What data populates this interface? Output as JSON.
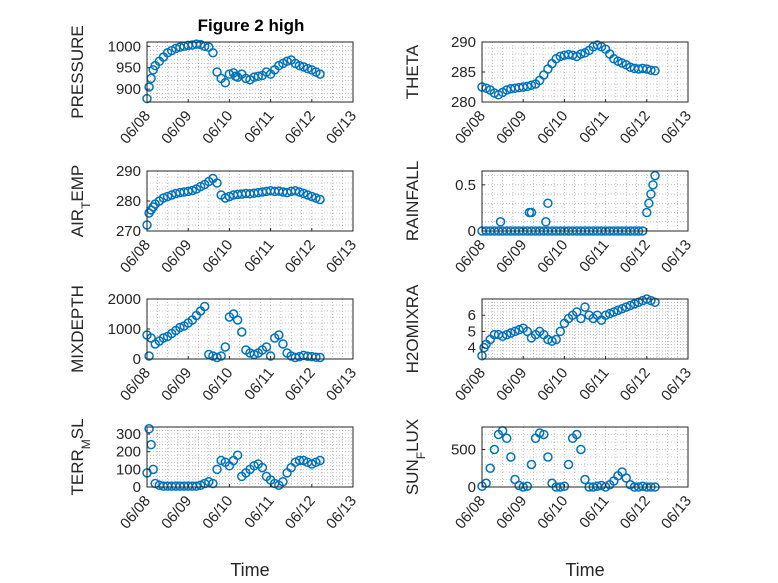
{
  "figure": {
    "title": "Figure 2 high"
  },
  "colors": {
    "marker": "#0072BD",
    "axis": "#262626",
    "grid": "#9a9a9a"
  },
  "chart_data": [
    {
      "type": "scatter",
      "ylabel": "PRESSURE",
      "yticks": [
        900,
        950,
        1000
      ],
      "ylim": [
        870,
        1010
      ],
      "xticks": [
        "06/08",
        "06/09",
        "06/10",
        "06/11",
        "06/12",
        "06/13"
      ],
      "xlim": [
        0,
        5
      ],
      "xlabel": "",
      "grid": true,
      "x": [
        0.0,
        0.05,
        0.1,
        0.15,
        0.2,
        0.3,
        0.4,
        0.5,
        0.6,
        0.7,
        0.8,
        0.9,
        1.0,
        1.1,
        1.2,
        1.3,
        1.4,
        1.5,
        1.6,
        1.7,
        1.8,
        1.9,
        2.0,
        2.1,
        2.15,
        2.2,
        2.3,
        2.4,
        2.5,
        2.6,
        2.7,
        2.8,
        2.9,
        3.0,
        3.1,
        3.2,
        3.3,
        3.4,
        3.5,
        3.6,
        3.7,
        3.8,
        3.9,
        4.0,
        4.1,
        4.2
      ],
      "y": [
        878,
        905,
        925,
        945,
        955,
        965,
        975,
        985,
        990,
        995,
        998,
        1000,
        1002,
        1003,
        1005,
        1004,
        1000,
        998,
        985,
        940,
        925,
        915,
        935,
        938,
        930,
        928,
        935,
        925,
        922,
        928,
        930,
        932,
        940,
        935,
        945,
        955,
        960,
        965,
        968,
        960,
        955,
        952,
        948,
        945,
        940,
        935
      ]
    },
    {
      "type": "scatter",
      "ylabel": "THETA",
      "yticks": [
        280,
        285,
        290
      ],
      "ylim": [
        280,
        290
      ],
      "xticks": [
        "06/08",
        "06/09",
        "06/10",
        "06/11",
        "06/12",
        "06/13"
      ],
      "xlim": [
        0,
        5
      ],
      "xlabel": "",
      "grid": true,
      "x": [
        0.0,
        0.1,
        0.2,
        0.3,
        0.4,
        0.5,
        0.6,
        0.7,
        0.8,
        0.9,
        1.0,
        1.1,
        1.2,
        1.3,
        1.4,
        1.5,
        1.6,
        1.7,
        1.8,
        1.9,
        2.0,
        2.1,
        2.2,
        2.3,
        2.4,
        2.5,
        2.6,
        2.7,
        2.8,
        2.9,
        3.0,
        3.1,
        3.2,
        3.3,
        3.4,
        3.5,
        3.6,
        3.7,
        3.8,
        3.9,
        4.0,
        4.1,
        4.2
      ],
      "y": [
        282.5,
        282.3,
        282,
        281.5,
        281.2,
        281.6,
        282,
        282.2,
        282.3,
        282.4,
        282.5,
        282.6,
        282.8,
        283,
        283.6,
        284.5,
        285.5,
        286.4,
        287.2,
        287.6,
        287.8,
        287.9,
        287.8,
        287.6,
        288,
        288.2,
        288.6,
        289.2,
        289.5,
        289.2,
        288.8,
        288,
        287.2,
        286.8,
        286.5,
        286.2,
        285.8,
        285.6,
        285.5,
        285.6,
        285.5,
        285.3,
        285.2
      ]
    },
    {
      "type": "scatter",
      "ylabel": "AIR_TEMP",
      "yticks": [
        270,
        280,
        290
      ],
      "ylim": [
        270,
        290
      ],
      "xticks": [
        "06/08",
        "06/09",
        "06/10",
        "06/11",
        "06/12",
        "06/13"
      ],
      "xlim": [
        0,
        5
      ],
      "xlabel": "",
      "grid": true,
      "x": [
        0.0,
        0.05,
        0.1,
        0.15,
        0.2,
        0.3,
        0.4,
        0.5,
        0.6,
        0.7,
        0.8,
        0.9,
        1.0,
        1.1,
        1.2,
        1.3,
        1.4,
        1.5,
        1.6,
        1.7,
        1.8,
        1.9,
        2.0,
        2.1,
        2.2,
        2.3,
        2.4,
        2.5,
        2.6,
        2.7,
        2.8,
        2.9,
        3.0,
        3.1,
        3.2,
        3.3,
        3.4,
        3.5,
        3.6,
        3.7,
        3.8,
        3.9,
        4.0,
        4.1,
        4.2
      ],
      "y": [
        272,
        276,
        277,
        278,
        279,
        280,
        281,
        281.5,
        282,
        282.5,
        282.8,
        283,
        283.2,
        283.5,
        284,
        284.8,
        285.5,
        286.5,
        287.5,
        286,
        282,
        281,
        281.5,
        282,
        282.2,
        282.3,
        282.5,
        282.4,
        282.6,
        282.8,
        283,
        283.2,
        283.4,
        283.2,
        283.3,
        283,
        282.8,
        283.2,
        283.4,
        283,
        282.5,
        282,
        281.5,
        281,
        280.5
      ]
    },
    {
      "type": "scatter",
      "ylabel": "RAINFALL",
      "yticks": [
        0,
        0.5
      ],
      "ylim": [
        0,
        0.65
      ],
      "xticks": [
        "06/08",
        "06/09",
        "06/10",
        "06/11",
        "06/12",
        "06/13"
      ],
      "xlim": [
        0,
        5
      ],
      "xlabel": "",
      "grid": true,
      "x": [
        0.0,
        0.1,
        0.2,
        0.3,
        0.4,
        0.5,
        0.6,
        0.7,
        0.8,
        0.9,
        1.0,
        1.1,
        1.2,
        1.3,
        1.4,
        1.5,
        1.6,
        1.7,
        1.8,
        1.9,
        2.0,
        2.1,
        2.2,
        2.3,
        2.4,
        2.5,
        2.6,
        2.7,
        2.8,
        2.9,
        3.0,
        3.1,
        3.2,
        3.3,
        3.4,
        3.5,
        3.6,
        3.7,
        3.8,
        3.9,
        4.0,
        4.05,
        4.1,
        4.15,
        4.2,
        0.45,
        1.15,
        1.2,
        1.55,
        1.6
      ],
      "y": [
        0,
        0,
        0,
        0,
        0,
        0,
        0,
        0,
        0,
        0,
        0,
        0,
        0,
        0,
        0,
        0,
        0,
        0,
        0,
        0,
        0,
        0,
        0,
        0,
        0,
        0,
        0,
        0,
        0,
        0,
        0,
        0,
        0,
        0,
        0,
        0,
        0,
        0,
        0,
        0,
        0.2,
        0.3,
        0.4,
        0.5,
        0.6,
        0.1,
        0.2,
        0.2,
        0.1,
        0.3
      ]
    },
    {
      "type": "scatter",
      "ylabel": "MIXDEPTH",
      "yticks": [
        0,
        1000,
        2000
      ],
      "ylim": [
        0,
        2000
      ],
      "xticks": [
        "06/08",
        "06/09",
        "06/10",
        "06/11",
        "06/12",
        "06/13"
      ],
      "xlim": [
        0,
        5
      ],
      "xlabel": "",
      "grid": true,
      "x": [
        0.0,
        0.05,
        0.1,
        0.2,
        0.3,
        0.4,
        0.5,
        0.6,
        0.7,
        0.8,
        0.9,
        1.0,
        1.1,
        1.2,
        1.3,
        1.4,
        1.5,
        1.6,
        1.7,
        1.8,
        1.9,
        2.0,
        2.1,
        2.2,
        2.3,
        2.4,
        2.5,
        2.6,
        2.7,
        2.8,
        2.9,
        3.0,
        3.1,
        3.2,
        3.3,
        3.4,
        3.5,
        3.6,
        3.7,
        3.8,
        3.9,
        4.0,
        4.1,
        4.2
      ],
      "y": [
        800,
        100,
        700,
        500,
        600,
        700,
        750,
        850,
        950,
        1050,
        1100,
        1200,
        1300,
        1450,
        1600,
        1750,
        150,
        100,
        50,
        100,
        400,
        1400,
        1500,
        1300,
        900,
        300,
        200,
        150,
        200,
        300,
        400,
        100,
        700,
        800,
        500,
        200,
        100,
        50,
        80,
        120,
        90,
        80,
        60,
        50
      ]
    },
    {
      "type": "scatter",
      "ylabel": "H2OMIXRA",
      "yticks": [
        4,
        5,
        6
      ],
      "ylim": [
        3.3,
        7
      ],
      "xticks": [
        "06/08",
        "06/09",
        "06/10",
        "06/11",
        "06/12",
        "06/13"
      ],
      "xlim": [
        0,
        5
      ],
      "xlabel": "",
      "grid": true,
      "x": [
        0.0,
        0.05,
        0.1,
        0.2,
        0.3,
        0.4,
        0.5,
        0.6,
        0.7,
        0.8,
        0.9,
        1.0,
        1.1,
        1.2,
        1.3,
        1.4,
        1.5,
        1.6,
        1.7,
        1.8,
        1.9,
        2.0,
        2.1,
        2.2,
        2.3,
        2.4,
        2.5,
        2.6,
        2.7,
        2.8,
        2.9,
        3.0,
        3.1,
        3.2,
        3.3,
        3.4,
        3.5,
        3.6,
        3.7,
        3.8,
        3.9,
        4.0,
        4.1,
        4.2
      ],
      "y": [
        3.5,
        4,
        4.2,
        4.5,
        4.8,
        4.8,
        4.7,
        4.8,
        4.9,
        5,
        5.1,
        5.2,
        5,
        4.6,
        4.8,
        5,
        4.8,
        4.5,
        4.4,
        4.5,
        5,
        5.5,
        5.8,
        6,
        6.2,
        5.8,
        6.5,
        6,
        5.8,
        6,
        5.7,
        6,
        6.1,
        6.2,
        6.3,
        6.4,
        6.5,
        6.6,
        6.7,
        6.8,
        6.9,
        7,
        6.9,
        6.8
      ]
    },
    {
      "type": "scatter",
      "ylabel": "TERR_MSL",
      "yticks": [
        0,
        100,
        200,
        300
      ],
      "ylim": [
        0,
        340
      ],
      "xticks": [
        "06/08",
        "06/09",
        "06/10",
        "06/11",
        "06/12",
        "06/13"
      ],
      "xlim": [
        0,
        5
      ],
      "xlabel": "Time",
      "grid": true,
      "x": [
        0.0,
        0.05,
        0.1,
        0.15,
        0.2,
        0.3,
        0.4,
        0.5,
        0.6,
        0.7,
        0.8,
        0.9,
        1.0,
        1.1,
        1.2,
        1.3,
        1.4,
        1.5,
        1.6,
        1.7,
        1.8,
        1.9,
        2.0,
        2.1,
        2.2,
        2.3,
        2.4,
        2.5,
        2.6,
        2.7,
        2.8,
        2.9,
        3.0,
        3.1,
        3.2,
        3.3,
        3.4,
        3.5,
        3.6,
        3.7,
        3.8,
        3.9,
        4.0,
        4.1,
        4.2
      ],
      "y": [
        80,
        330,
        240,
        100,
        20,
        10,
        5,
        5,
        5,
        5,
        5,
        5,
        5,
        5,
        5,
        10,
        20,
        30,
        20,
        100,
        150,
        140,
        120,
        150,
        180,
        60,
        80,
        100,
        120,
        130,
        110,
        60,
        40,
        20,
        10,
        30,
        80,
        110,
        140,
        150,
        150,
        140,
        130,
        140,
        150
      ]
    },
    {
      "type": "scatter",
      "ylabel": "SUN_FLUX",
      "yticks": [
        0,
        500
      ],
      "ylim": [
        0,
        800
      ],
      "xticks": [
        "06/08",
        "06/09",
        "06/10",
        "06/11",
        "06/12",
        "06/13"
      ],
      "xlim": [
        0,
        5
      ],
      "xlabel": "Time",
      "grid": true,
      "x": [
        0.0,
        0.1,
        0.2,
        0.3,
        0.4,
        0.5,
        0.6,
        0.7,
        0.8,
        0.9,
        1.0,
        1.1,
        1.2,
        1.3,
        1.4,
        1.5,
        1.6,
        1.7,
        1.8,
        1.9,
        2.0,
        2.1,
        2.2,
        2.3,
        2.4,
        2.5,
        2.6,
        2.7,
        2.8,
        2.9,
        3.0,
        3.1,
        3.2,
        3.3,
        3.4,
        3.5,
        3.6,
        3.7,
        3.8,
        3.9,
        4.0,
        4.1,
        4.2
      ],
      "y": [
        10,
        50,
        250,
        500,
        700,
        750,
        650,
        400,
        100,
        20,
        0,
        10,
        300,
        650,
        720,
        700,
        400,
        50,
        0,
        0,
        10,
        300,
        650,
        700,
        500,
        100,
        0,
        0,
        10,
        20,
        0,
        30,
        80,
        150,
        200,
        120,
        30,
        0,
        0,
        10,
        0,
        0,
        0
      ]
    }
  ]
}
